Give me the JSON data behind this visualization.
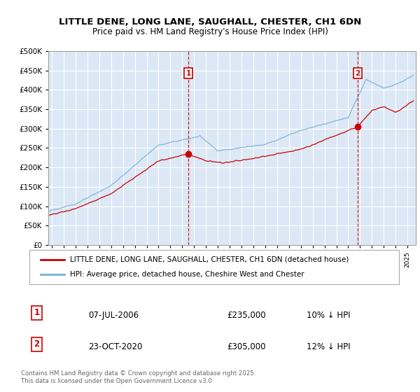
{
  "title_line1": "LITTLE DENE, LONG LANE, SAUGHALL, CHESTER, CH1 6DN",
  "title_line2": "Price paid vs. HM Land Registry's House Price Index (HPI)",
  "plot_bg_color": "#dce8f5",
  "grid_color": "#ffffff",
  "red_line_color": "#cc0000",
  "blue_line_color": "#7ab0d4",
  "sale1_date": "07-JUL-2006",
  "sale1_price": 235000,
  "sale1_label": "10% ↓ HPI",
  "sale2_date": "23-OCT-2020",
  "sale2_price": 305000,
  "sale2_label": "12% ↓ HPI",
  "legend_label_red": "LITTLE DENE, LONG LANE, SAUGHALL, CHESTER, CH1 6DN (detached house)",
  "legend_label_blue": "HPI: Average price, detached house, Cheshire West and Chester",
  "footer": "Contains HM Land Registry data © Crown copyright and database right 2025.\nThis data is licensed under the Open Government Licence v3.0.",
  "ylim_max": 500000,
  "ylim_min": 0,
  "sale1_x": 2006.52,
  "sale2_x": 2020.81,
  "xmin": 1994.7,
  "xmax": 2025.7
}
